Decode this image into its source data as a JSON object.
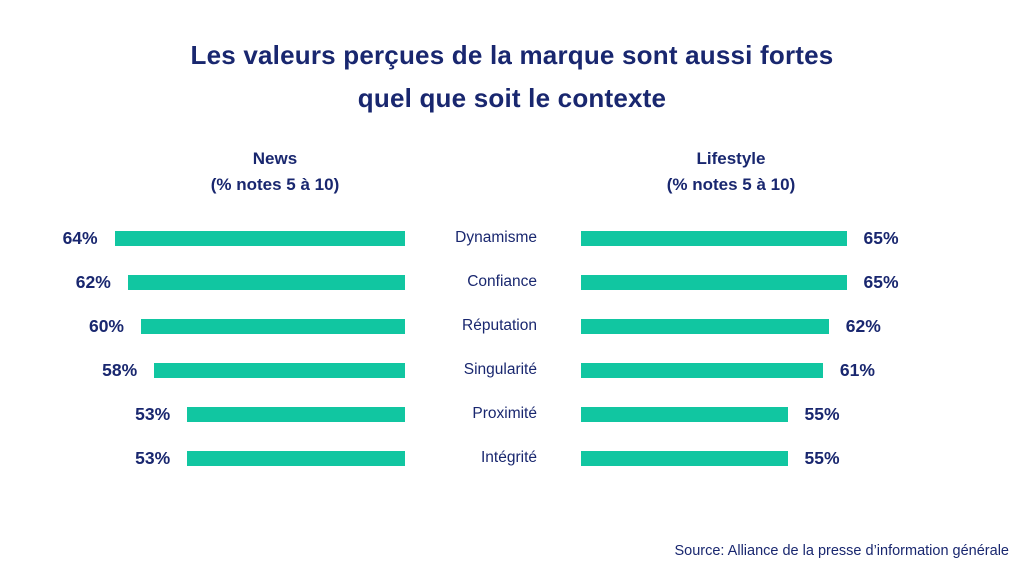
{
  "title": {
    "line1": "Les valeurs perçues de la marque sont aussi fortes",
    "line2": "quel que soit le contexte"
  },
  "columns": {
    "left": {
      "name": "News",
      "subtitle": "(% notes 5 à 10)"
    },
    "right": {
      "name": "Lifestyle",
      "subtitle": "(% notes 5 à 10)"
    }
  },
  "source": "Source: Alliance de la presse d’information générale",
  "colors": {
    "navy_text": "#19276F",
    "bar_teal": "#11C6A1",
    "background": "#FFFFFF"
  },
  "chart_data": {
    "type": "bar",
    "orientation": "horizontal",
    "layout": "butterfly",
    "title": "Les valeurs perçues de la marque sont aussi fortes quel que soit le contexte",
    "categories": [
      "Dynamisme",
      "Confiance",
      "Réputation",
      "Singularité",
      "Proximité",
      "Intégrité"
    ],
    "series": [
      {
        "name": "News (% notes 5 à 10)",
        "side": "left",
        "unit": "%",
        "values": [
          64,
          62,
          60,
          58,
          53,
          53
        ]
      },
      {
        "name": "Lifestyle (% notes 5 à 10)",
        "side": "right",
        "unit": "%",
        "values": [
          65,
          65,
          62,
          61,
          55,
          55
        ]
      }
    ],
    "value_labels_visible": true,
    "axis_visible": false,
    "gridlines": false,
    "legend_position": "column-headers",
    "source": "Source: Alliance de la presse d’information générale"
  }
}
